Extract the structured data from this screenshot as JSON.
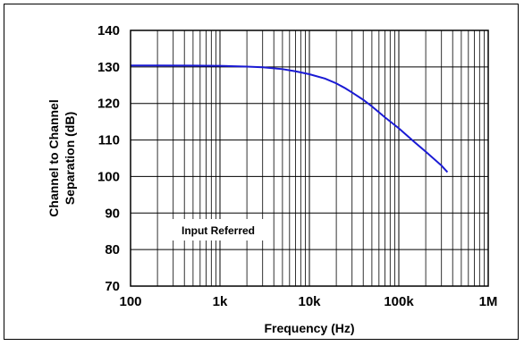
{
  "chart_data": {
    "type": "line",
    "xscale": "log",
    "xlim": [
      100,
      1000000
    ],
    "ylim": [
      70,
      140
    ],
    "xlabel": "Frequency (Hz)",
    "ylabel_lines": [
      "Channel to Channel",
      "Separation (dB)"
    ],
    "x_ticks": [
      {
        "value": 100,
        "label": "100"
      },
      {
        "value": 1000,
        "label": "1k"
      },
      {
        "value": 10000,
        "label": "10k"
      },
      {
        "value": 100000,
        "label": "100k"
      },
      {
        "value": 1000000,
        "label": "1M"
      }
    ],
    "y_ticks": [
      70,
      80,
      90,
      100,
      110,
      120,
      130,
      140
    ],
    "grid": true,
    "annotation": "Input Referred",
    "series": [
      {
        "color": "#1a1ad4",
        "points": [
          [
            100,
            130.4
          ],
          [
            200,
            130.4
          ],
          [
            500,
            130.35
          ],
          [
            1000,
            130.3
          ],
          [
            2000,
            130.1
          ],
          [
            3000,
            129.9
          ],
          [
            5000,
            129.4
          ],
          [
            7000,
            128.8
          ],
          [
            10000,
            128.0
          ],
          [
            15000,
            126.8
          ],
          [
            20000,
            125.5
          ],
          [
            25000,
            124.2
          ],
          [
            30000,
            123.0
          ],
          [
            40000,
            121.0
          ],
          [
            50000,
            119.2
          ],
          [
            70000,
            116.2
          ],
          [
            100000,
            113.2
          ],
          [
            150000,
            109.4
          ],
          [
            200000,
            106.8
          ],
          [
            300000,
            103.0
          ],
          [
            350000,
            101.2
          ]
        ]
      }
    ]
  }
}
